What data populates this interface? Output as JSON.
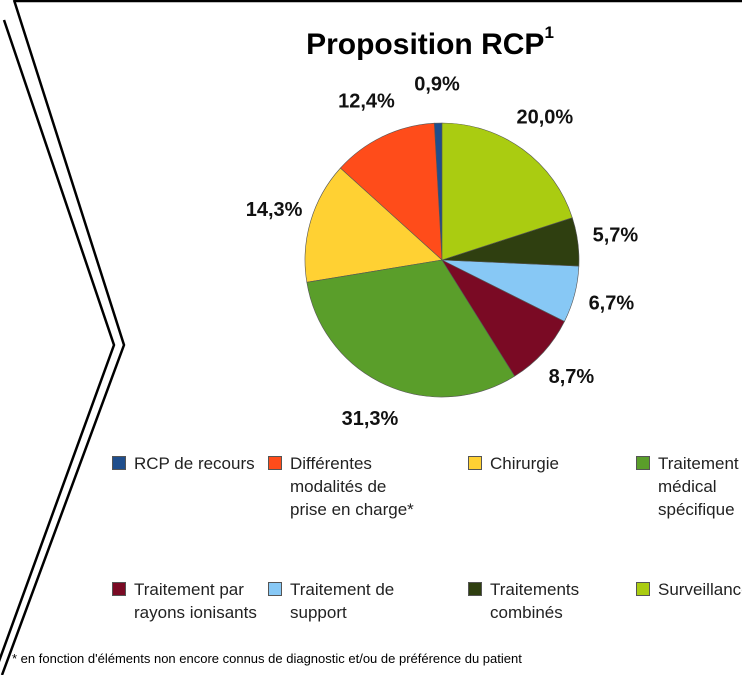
{
  "chart_data": {
    "type": "pie",
    "title": "Proposition RCP",
    "title_superscript": "1",
    "categories": [
      "RCP de recours",
      "Différentes modalités de prise en charge*",
      "Chirurgie",
      "Traitement médical spécifique",
      "Traitement par rayons ionisants",
      "Traitement de support",
      "Traitements combinés",
      "Surveillance"
    ],
    "values": [
      0.9,
      12.4,
      14.3,
      31.3,
      8.7,
      6.7,
      5.7,
      20.0
    ],
    "value_labels": [
      "0,9%",
      "12,4%",
      "14,3%",
      "31,3%",
      "8,7%",
      "6,7%",
      "5,7%",
      "20,0%"
    ],
    "colors": [
      "#1f4e8c",
      "#ff4c1a",
      "#ffd133",
      "#5a9e2a",
      "#7a0a24",
      "#87c8f5",
      "#2f3f10",
      "#aacc11"
    ],
    "direction": "counterclockwise",
    "legend": "bottom",
    "footnote": "* en fonction d'éléments non encore connus de diagnostic et/ou de préférence du patient"
  }
}
